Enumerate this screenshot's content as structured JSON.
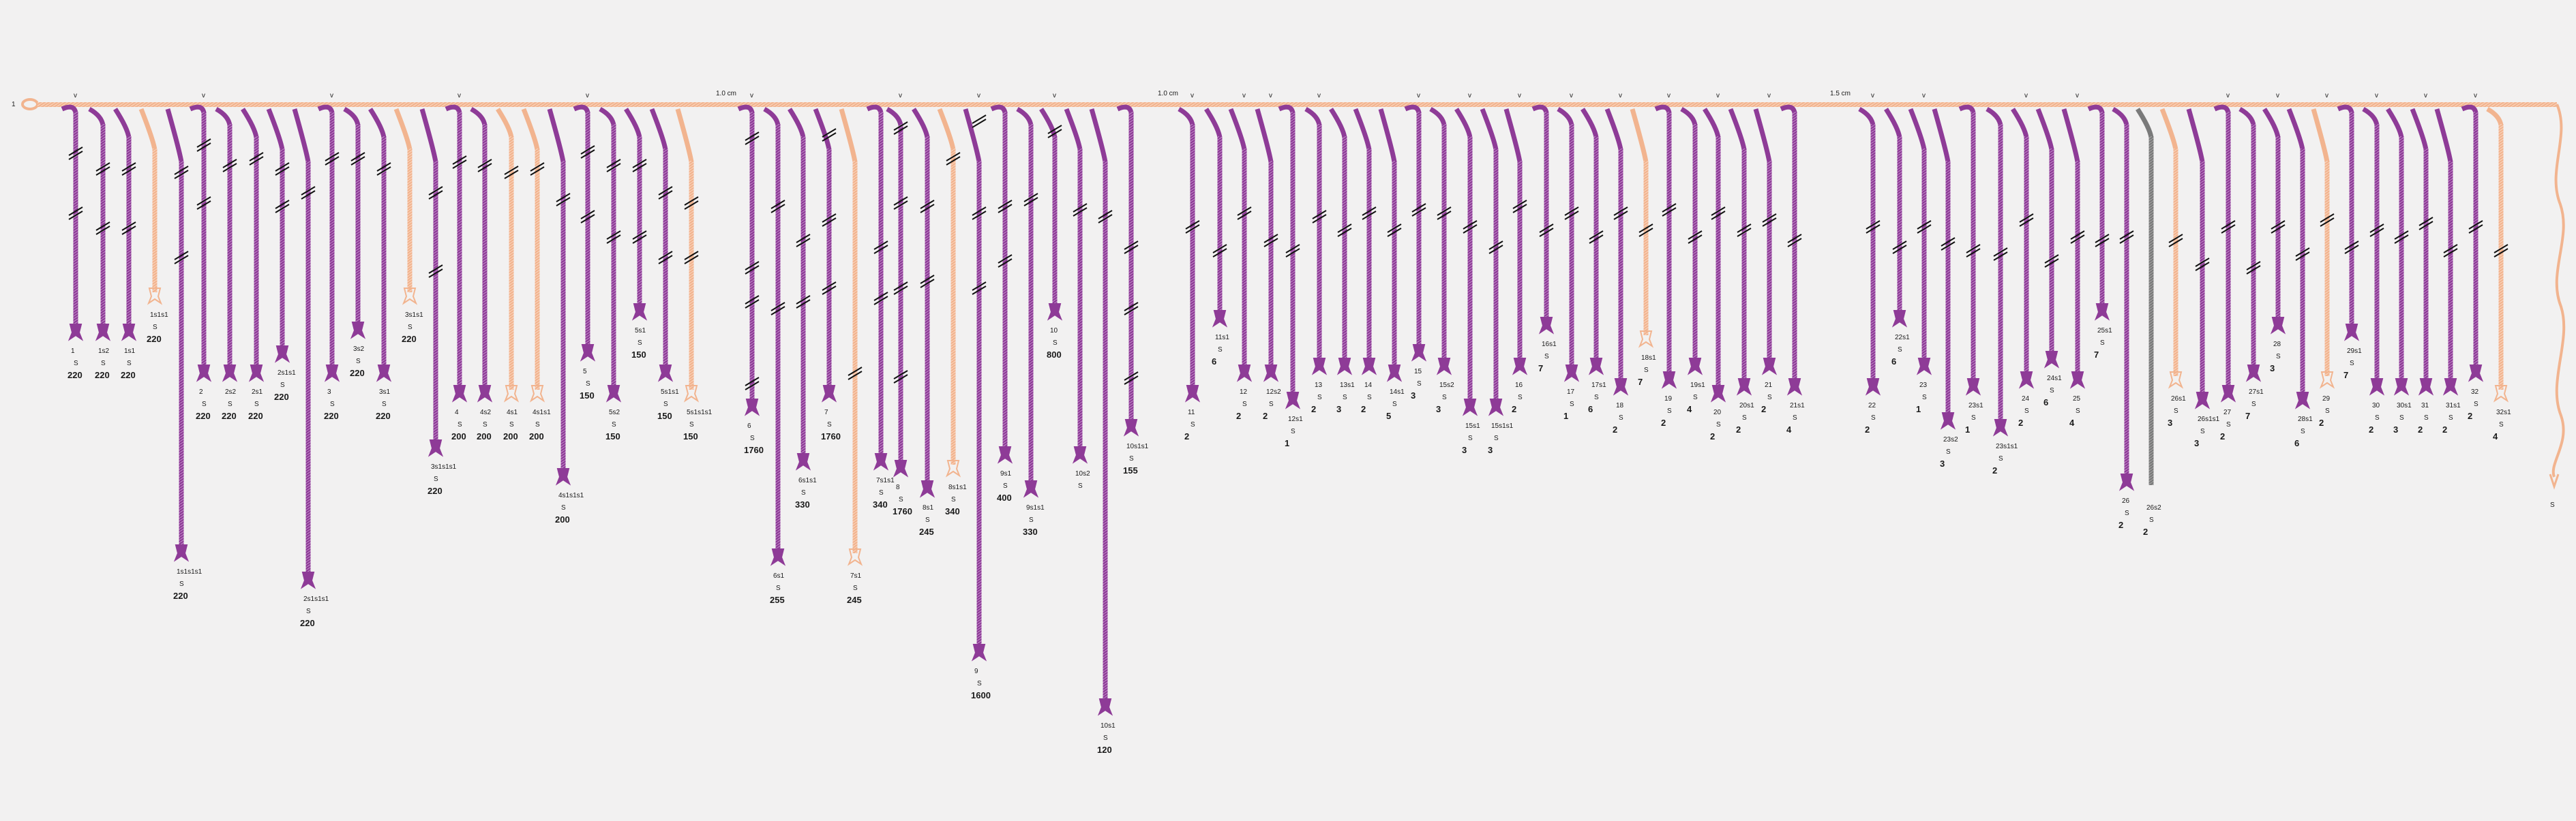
{
  "diagram": {
    "primary_cord": {
      "label": "1",
      "pendant_marker": "v",
      "spacing_labels": [
        "1.0 cm",
        "1.0 cm",
        "1.5 cm"
      ],
      "color": "#f2b48f"
    },
    "colors": {
      "purple": "#8e3b97",
      "purple_light": "#b070b8",
      "tan": "#f2b48f",
      "gray": "#7a7a7a",
      "knot": "#111111"
    },
    "pendants": [
      {
        "cord": "1",
        "type": "S",
        "value": "220"
      },
      {
        "cord": "1s2",
        "type": "S",
        "value": "220"
      },
      {
        "cord": "1s1",
        "type": "S",
        "value": "220"
      },
      {
        "cord": "1s1s1",
        "type": "S",
        "value": "220"
      },
      {
        "cord": "1s1s1s1",
        "type": "S",
        "value": "220"
      },
      {
        "cord": "2",
        "type": "S",
        "value": "220"
      },
      {
        "cord": "2s2",
        "type": "S",
        "value": "220"
      },
      {
        "cord": "2s1",
        "type": "S",
        "value": "220"
      },
      {
        "cord": "2s1s1",
        "type": "S",
        "value": "220"
      },
      {
        "cord": "2s1s1s1",
        "type": "S",
        "value": "220"
      },
      {
        "cord": "3",
        "type": "S",
        "value": "220"
      },
      {
        "cord": "3s2",
        "type": "S",
        "value": "220"
      },
      {
        "cord": "3s1",
        "type": "S",
        "value": "220"
      },
      {
        "cord": "3s1s1",
        "type": "S",
        "value": "220"
      },
      {
        "cord": "3s1s1s1",
        "type": "S",
        "value": "220"
      },
      {
        "cord": "4",
        "type": "S",
        "value": "200"
      },
      {
        "cord": "4s2",
        "type": "S",
        "value": "200"
      },
      {
        "cord": "4s1",
        "type": "S",
        "value": "200"
      },
      {
        "cord": "4s1s1",
        "type": "S",
        "value": "200"
      },
      {
        "cord": "4s1s1s1",
        "type": "S",
        "value": "200"
      },
      {
        "cord": "5",
        "type": "S",
        "value": "150"
      },
      {
        "cord": "5s2",
        "type": "S",
        "value": "150"
      },
      {
        "cord": "5s1",
        "type": "S",
        "value": "150"
      },
      {
        "cord": "5s1s1",
        "type": "S",
        "value": "150"
      },
      {
        "cord": "5s1s1s1",
        "type": "S",
        "value": "150"
      },
      {
        "cord": "6",
        "type": "S",
        "value": "1760"
      },
      {
        "cord": "6s1",
        "type": "S",
        "value": "255"
      },
      {
        "cord": "6s1s1",
        "type": "S",
        "value": "330"
      },
      {
        "cord": "7",
        "type": "S",
        "value": "1760"
      },
      {
        "cord": "7s1",
        "type": "S",
        "value": "245"
      },
      {
        "cord": "7s1s1",
        "type": "S",
        "value": "340"
      },
      {
        "cord": "8",
        "type": "S",
        "value": "1760"
      },
      {
        "cord": "8s1",
        "type": "S",
        "value": "245"
      },
      {
        "cord": "8s1s1",
        "type": "S",
        "value": "340"
      },
      {
        "cord": "9",
        "type": "S",
        "value": "1600"
      },
      {
        "cord": "9s1",
        "type": "S",
        "value": "400"
      },
      {
        "cord": "9s1s1",
        "type": "S",
        "value": "330"
      },
      {
        "cord": "10",
        "type": "S",
        "value": "800"
      },
      {
        "cord": "10s2",
        "type": "S",
        "value": ""
      },
      {
        "cord": "10s1",
        "type": "S",
        "value": "120"
      },
      {
        "cord": "10s1s1",
        "type": "S",
        "value": "155"
      },
      {
        "cord": "11",
        "type": "S",
        "value": "2"
      },
      {
        "cord": "11s1",
        "type": "S",
        "value": "6"
      },
      {
        "cord": "12",
        "type": "S",
        "value": "2"
      },
      {
        "cord": "12s2",
        "type": "S",
        "value": "2"
      },
      {
        "cord": "12s1",
        "type": "S",
        "value": "1"
      },
      {
        "cord": "13",
        "type": "S",
        "value": "2"
      },
      {
        "cord": "13s1",
        "type": "S",
        "value": "3"
      },
      {
        "cord": "14",
        "type": "S",
        "value": "2"
      },
      {
        "cord": "14s1",
        "type": "S",
        "value": "5"
      },
      {
        "cord": "15",
        "type": "S",
        "value": "3"
      },
      {
        "cord": "15s2",
        "type": "S",
        "value": "3"
      },
      {
        "cord": "15s1",
        "type": "S",
        "value": "3"
      },
      {
        "cord": "15s1s1",
        "type": "S",
        "value": "3"
      },
      {
        "cord": "16",
        "type": "S",
        "value": "2"
      },
      {
        "cord": "16s1",
        "type": "S",
        "value": "7"
      },
      {
        "cord": "17",
        "type": "S",
        "value": "1"
      },
      {
        "cord": "17s1",
        "type": "S",
        "value": "6"
      },
      {
        "cord": "18",
        "type": "S",
        "value": "2"
      },
      {
        "cord": "18s1",
        "type": "S",
        "value": "7"
      },
      {
        "cord": "19",
        "type": "S",
        "value": "2"
      },
      {
        "cord": "19s1",
        "type": "S",
        "value": "4"
      },
      {
        "cord": "20",
        "type": "S",
        "value": "2"
      },
      {
        "cord": "20s1",
        "type": "S",
        "value": "2"
      },
      {
        "cord": "21",
        "type": "S",
        "value": "2"
      },
      {
        "cord": "21s1",
        "type": "S",
        "value": "4"
      },
      {
        "cord": "22",
        "type": "S",
        "value": "2"
      },
      {
        "cord": "22s1",
        "type": "S",
        "value": "6"
      },
      {
        "cord": "23",
        "type": "S",
        "value": "1"
      },
      {
        "cord": "23s2",
        "type": "S",
        "value": "3"
      },
      {
        "cord": "23s1",
        "type": "S",
        "value": "1"
      },
      {
        "cord": "23s1s1",
        "type": "S",
        "value": "2"
      },
      {
        "cord": "24",
        "type": "S",
        "value": "2"
      },
      {
        "cord": "24s1",
        "type": "S",
        "value": "6"
      },
      {
        "cord": "25",
        "type": "S",
        "value": "4"
      },
      {
        "cord": "25s1",
        "type": "S",
        "value": "7"
      },
      {
        "cord": "26",
        "type": "S",
        "value": "2"
      },
      {
        "cord": "26s2",
        "type": "S",
        "value": "2"
      },
      {
        "cord": "26s1",
        "type": "S",
        "value": "3"
      },
      {
        "cord": "26s1s1",
        "type": "S",
        "value": "3"
      },
      {
        "cord": "27",
        "type": "S",
        "value": "2"
      },
      {
        "cord": "27s1",
        "type": "S",
        "value": "7"
      },
      {
        "cord": "28",
        "type": "S",
        "value": "3"
      },
      {
        "cord": "28s1",
        "type": "S",
        "value": "6"
      },
      {
        "cord": "29",
        "type": "S",
        "value": "2"
      },
      {
        "cord": "29s1",
        "type": "S",
        "value": "7"
      },
      {
        "cord": "30",
        "type": "S",
        "value": "2"
      },
      {
        "cord": "30s1",
        "type": "S",
        "value": "3"
      },
      {
        "cord": "31",
        "type": "S",
        "value": "2"
      },
      {
        "cord": "31s1",
        "type": "S",
        "value": "2"
      },
      {
        "cord": "32",
        "type": "S",
        "value": "2"
      },
      {
        "cord": "32s1",
        "type": "S",
        "value": "4"
      },
      {
        "cord": "",
        "type": "S",
        "value": ""
      }
    ]
  }
}
